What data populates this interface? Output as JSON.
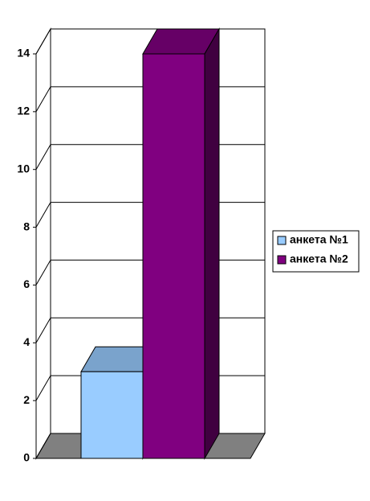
{
  "chart_data": {
    "type": "bar",
    "categories": [
      null
    ],
    "series": [
      {
        "name": "анкета №1",
        "color": "#99ccff",
        "values": [
          3
        ]
      },
      {
        "name": "анкета №2",
        "color": "#800080",
        "values": [
          14
        ]
      }
    ],
    "ylim": [
      0,
      14
    ],
    "yticks": [
      0,
      2,
      4,
      6,
      8,
      10,
      12,
      14
    ],
    "grid": true,
    "legend": "right"
  }
}
